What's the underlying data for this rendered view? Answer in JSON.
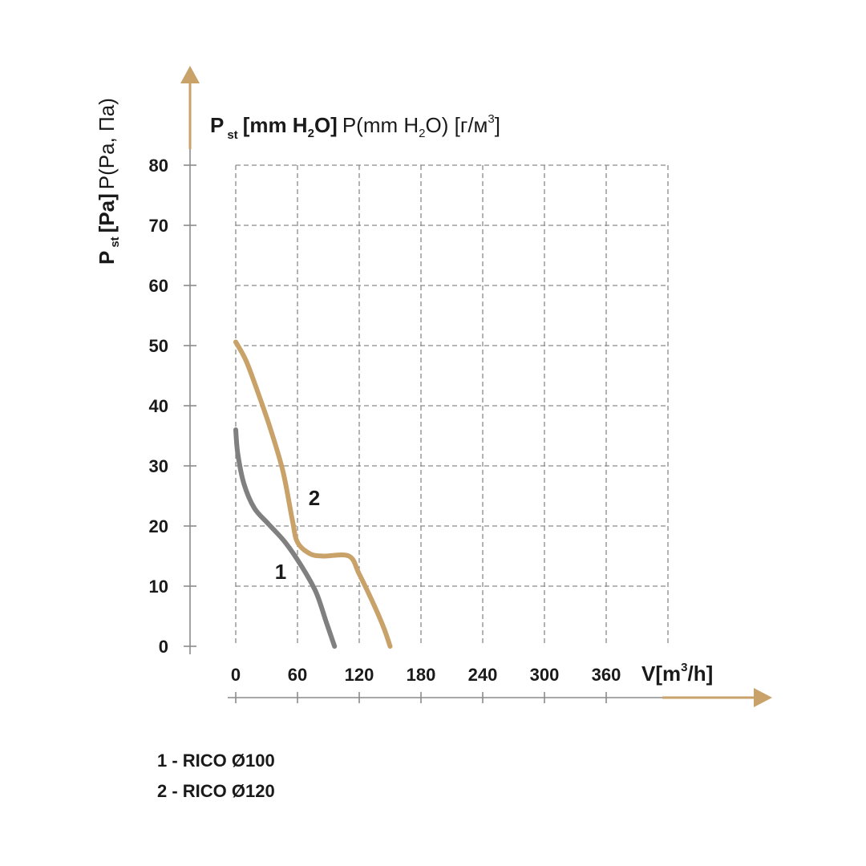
{
  "chart_data": {
    "type": "line",
    "y_axis": {
      "label": {
        "main": "P",
        "main_sub": "st",
        "main_unit": "[Pa]",
        "secondary": "P(Pa, Па)"
      },
      "ticks": [
        0,
        10,
        20,
        30,
        40,
        50,
        60,
        70,
        80
      ],
      "ylim": [
        0,
        80
      ]
    },
    "y_axis_alt_label": {
      "p": "P",
      "p_sub": "st",
      "unit_a": "[mm H",
      "unit_sub2": "2",
      "unit_b": "O]",
      "secondary_a": "P(mm H",
      "secondary_sub2": "2",
      "secondary_b": "O) [г/м",
      "secondary_sup3": "3",
      "secondary_c": "]"
    },
    "x_axis": {
      "label_a": "V[m",
      "label_sup": "3",
      "label_b": "/h]",
      "ticks": [
        0,
        60,
        120,
        180,
        240,
        300,
        360
      ],
      "xlim": [
        0,
        420
      ]
    },
    "grid": true,
    "series": [
      {
        "name": "1",
        "color": "#808080",
        "points": [
          [
            0,
            36
          ],
          [
            2,
            32
          ],
          [
            8,
            27
          ],
          [
            18,
            23
          ],
          [
            32,
            20.3
          ],
          [
            48,
            17.3
          ],
          [
            64,
            13.3
          ],
          [
            78,
            9
          ],
          [
            88,
            4
          ],
          [
            96,
            0
          ]
        ]
      },
      {
        "name": "2",
        "color": "#c9a26a",
        "points": [
          [
            0,
            50.6
          ],
          [
            10,
            47.5
          ],
          [
            22,
            42
          ],
          [
            34,
            36
          ],
          [
            46,
            29
          ],
          [
            55,
            21
          ],
          [
            60,
            17.3
          ],
          [
            72,
            15.4
          ],
          [
            85,
            15
          ],
          [
            110,
            15
          ],
          [
            120,
            12
          ],
          [
            134,
            7
          ],
          [
            144,
            3
          ],
          [
            150,
            0
          ]
        ]
      }
    ],
    "legend": [
      "1 - RICO Ø100",
      "2 - RICO Ø120"
    ]
  }
}
